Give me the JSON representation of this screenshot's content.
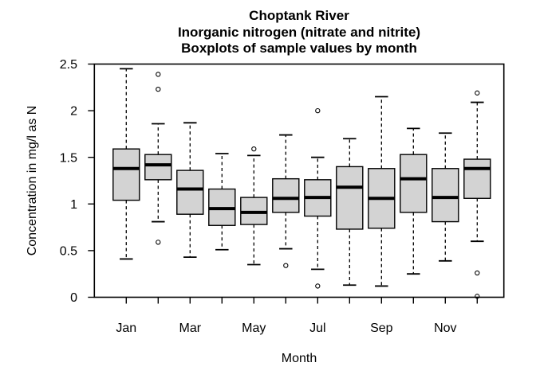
{
  "figure": {
    "background": "#ffffff"
  },
  "chart_data": {
    "type": "boxplot",
    "title": [
      "Choptank River",
      "Inorganic nitrogen (nitrate and nitrite)",
      "Boxplots of sample values by month"
    ],
    "xlabel": "Month",
    "ylabel": "Concentration in mg/l as N",
    "ylim": [
      0,
      2.5
    ],
    "yticks": [
      0,
      0.5,
      1,
      1.5,
      2,
      2.5
    ],
    "ytick_labels": [
      "0",
      "0.5",
      "1",
      "1.5",
      "2",
      "2.5"
    ],
    "categories": [
      "Jan",
      "Feb",
      "Mar",
      "Apr",
      "May",
      "Jun",
      "Jul",
      "Aug",
      "Sep",
      "Oct",
      "Nov",
      "Dec"
    ],
    "xtick_labels_shown": [
      "Jan",
      "Mar",
      "May",
      "Jul",
      "Sep",
      "Nov"
    ],
    "grid": false,
    "series": [
      {
        "month": "Jan",
        "whisker_low": 0.41,
        "q1": 1.04,
        "median": 1.38,
        "q3": 1.59,
        "whisker_high": 2.45,
        "outliers": []
      },
      {
        "month": "Feb",
        "whisker_low": 0.81,
        "q1": 1.26,
        "median": 1.42,
        "q3": 1.53,
        "whisker_high": 1.86,
        "outliers": [
          2.39,
          2.23,
          0.59
        ]
      },
      {
        "month": "Mar",
        "whisker_low": 0.43,
        "q1": 0.89,
        "median": 1.16,
        "q3": 1.36,
        "whisker_high": 1.87,
        "outliers": []
      },
      {
        "month": "Apr",
        "whisker_low": 0.51,
        "q1": 0.77,
        "median": 0.95,
        "q3": 1.16,
        "whisker_high": 1.54,
        "outliers": []
      },
      {
        "month": "May",
        "whisker_low": 0.35,
        "q1": 0.78,
        "median": 0.91,
        "q3": 1.07,
        "whisker_high": 1.52,
        "outliers": [
          1.59
        ]
      },
      {
        "month": "Jun",
        "whisker_low": 0.52,
        "q1": 0.91,
        "median": 1.06,
        "q3": 1.27,
        "whisker_high": 1.74,
        "outliers": [
          0.34
        ]
      },
      {
        "month": "Jul",
        "whisker_low": 0.3,
        "q1": 0.87,
        "median": 1.07,
        "q3": 1.26,
        "whisker_high": 1.5,
        "outliers": [
          2.0,
          0.12
        ]
      },
      {
        "month": "Aug",
        "whisker_low": 0.13,
        "q1": 0.73,
        "median": 1.18,
        "q3": 1.4,
        "whisker_high": 1.7,
        "outliers": []
      },
      {
        "month": "Sep",
        "whisker_low": 0.12,
        "q1": 0.74,
        "median": 1.06,
        "q3": 1.38,
        "whisker_high": 2.15,
        "outliers": []
      },
      {
        "month": "Oct",
        "whisker_low": 0.25,
        "q1": 0.91,
        "median": 1.27,
        "q3": 1.53,
        "whisker_high": 1.81,
        "outliers": []
      },
      {
        "month": "Nov",
        "whisker_low": 0.39,
        "q1": 0.81,
        "median": 1.07,
        "q3": 1.38,
        "whisker_high": 1.76,
        "outliers": []
      },
      {
        "month": "Dec",
        "whisker_low": 0.6,
        "q1": 1.06,
        "median": 1.38,
        "q3": 1.48,
        "whisker_high": 2.09,
        "outliers": [
          2.19,
          0.26,
          0.01
        ]
      }
    ],
    "colors": {
      "box_fill": "#d3d3d3",
      "line": "#000000",
      "background": "#ffffff"
    }
  }
}
